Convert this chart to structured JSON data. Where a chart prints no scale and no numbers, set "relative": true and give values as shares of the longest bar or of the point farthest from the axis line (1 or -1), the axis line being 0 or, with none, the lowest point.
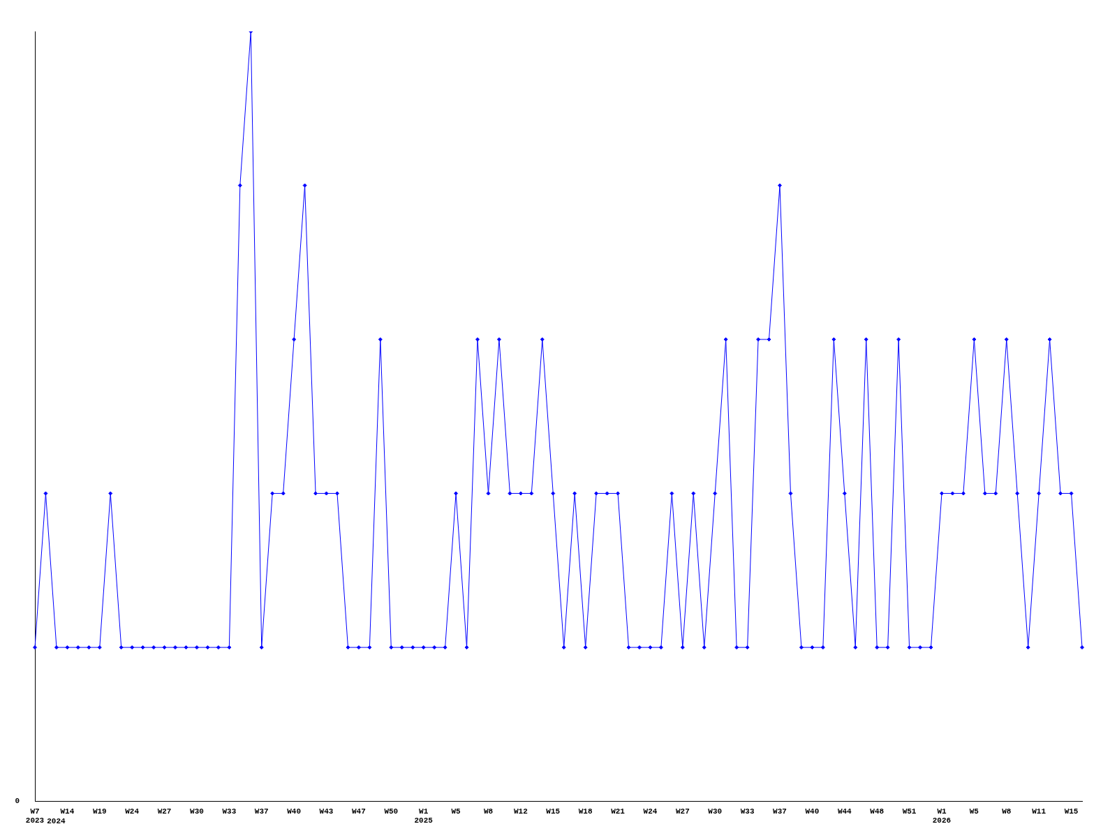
{
  "chart_data": {
    "type": "line",
    "relative": true,
    "marker": "diamond",
    "legend": false,
    "grid": false,
    "categories": [
      "W7\n2023",
      null,
      null,
      "W14",
      null,
      null,
      "W19",
      null,
      null,
      "W24",
      null,
      null,
      "W27",
      null,
      null,
      "W30",
      null,
      null,
      "W33",
      null,
      null,
      "W37",
      null,
      null,
      "W40",
      null,
      null,
      "W43",
      null,
      null,
      "W47",
      null,
      null,
      "W50",
      null,
      null,
      "W1\n2025",
      null,
      null,
      "W5",
      null,
      null,
      "W8",
      null,
      null,
      "W12",
      null,
      null,
      "W15",
      null,
      null,
      "W18",
      null,
      null,
      "W21",
      null,
      null,
      "W24",
      null,
      null,
      "W27",
      null,
      null,
      "W30",
      null,
      null,
      "W33",
      null,
      null,
      "W37",
      null,
      null,
      "W40",
      null,
      null,
      "W44",
      null,
      null,
      "W48",
      null,
      null,
      "W51",
      null,
      null,
      "W1\n2026",
      null,
      null,
      "W5",
      null,
      null,
      "W8",
      null,
      null,
      "W11",
      null,
      null,
      "W15",
      null
    ],
    "series": [
      {
        "color": "#0000ff",
        "values": [
          0.2,
          0.4,
          0.2,
          0.2,
          0.2,
          0.2,
          0.2,
          0.4,
          0.2,
          0.2,
          0.2,
          0.2,
          0.2,
          0.2,
          0.2,
          0.2,
          0.2,
          0.2,
          0.2,
          0.8,
          1,
          0.2,
          0.4,
          0.4,
          0.6,
          0.8,
          0.4,
          0.4,
          0.4,
          0.2,
          0.2,
          0.2,
          0.6,
          0.2,
          0.2,
          0.2,
          0.2,
          0.2,
          0.2,
          0.4,
          0.2,
          0.6,
          0.4,
          0.6,
          0.4,
          0.4,
          0.4,
          0.6,
          0.4,
          0.2,
          0.4,
          0.2,
          0.4,
          0.4,
          0.4,
          0.2,
          0.2,
          0.2,
          0.2,
          0.4,
          0.2,
          0.4,
          0.2,
          0.4,
          0.6,
          0.2,
          0.2,
          0.6,
          0.6,
          0.8,
          0.4,
          0.2,
          0.2,
          0.2,
          0.6,
          0.4,
          0.2,
          0.6,
          0.2,
          0.2,
          0.6,
          0.2,
          0.2,
          0.2,
          0.4,
          0.4,
          0.4,
          0.6,
          0.4,
          0.4,
          0.6,
          0.4,
          0.2,
          0.4,
          0.6,
          0.4,
          0.4,
          0.2
        ]
      }
    ],
    "annotations": [
      "0",
      "2024"
    ]
  }
}
